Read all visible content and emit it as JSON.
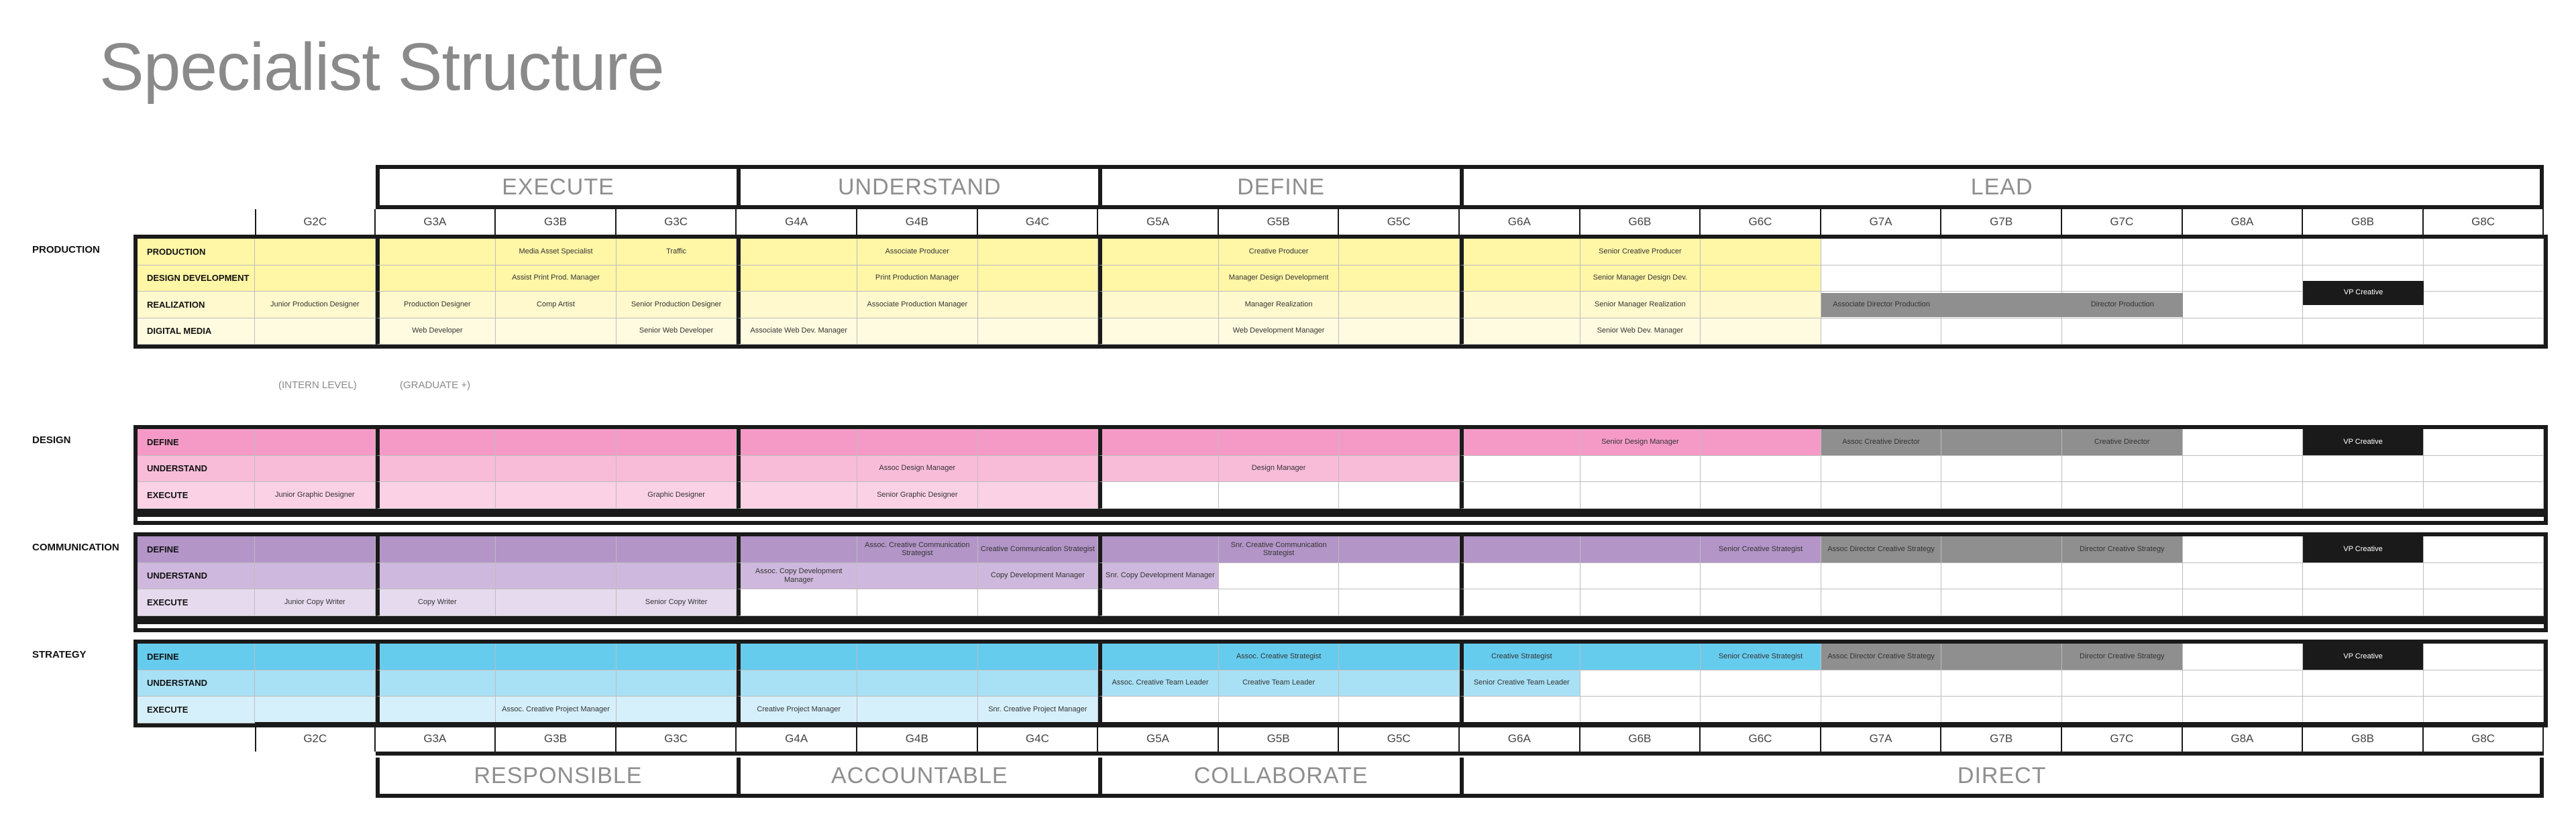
{
  "title": "Specialist Structure",
  "grades": [
    "G2C",
    "G3A",
    "G3B",
    "G3C",
    "G4A",
    "G4B",
    "G4C",
    "G5A",
    "G5B",
    "G5C",
    "G6A",
    "G6B",
    "G6C",
    "G7A",
    "G7B",
    "G7C",
    "G8A",
    "G8B",
    "G8C"
  ],
  "top_phases": [
    "EXECUTE",
    "UNDERSTAND",
    "DEFINE",
    "LEAD"
  ],
  "bottom_phases": [
    "RESPONSIBLE",
    "ACCOUNTABLE",
    "COLLABORATE",
    "DIRECT"
  ],
  "notes": {
    "intern": "(INTERN LEVEL)",
    "graduate": "(GRADUATE +)"
  },
  "colors": {
    "production": "#fff6a6",
    "production_light": "#fff9cd",
    "production_lighter": "#fffbe0",
    "design": "#f59ac7",
    "design_light": "#f8bcd9",
    "design_lighter": "#fad1e5",
    "communication": "#b395c8",
    "communication_light": "#cfb8dd",
    "communication_lighter": "#e6dbee",
    "strategy": "#66ccee",
    "strategy_light": "#a8e0f5",
    "strategy_lighter": "#d6f0fb",
    "gray": "#8f8f8f",
    "black": "#1a1a1a",
    "white": "#ffffff"
  },
  "sections": [
    {
      "name": "PRODUCTION",
      "rows": [
        {
          "label": "PRODUCTION",
          "tone": "production",
          "cells": {
            "G3B": "Media Asset Specialist",
            "G3C": "Traffic",
            "G4B": "Associate Producer",
            "G5B": "Creative Producer",
            "G6B": "Senior Creative Producer"
          }
        },
        {
          "label": "DESIGN DEVELOPMENT",
          "tone": "production",
          "cells": {
            "G3B": "Assist Print Prod. Manager",
            "G4B": "Print Production Manager",
            "G5B": "Manager Design Development",
            "G6B": "Senior Manager Design Dev."
          }
        },
        {
          "label": "REALIZATION",
          "tone": "production_light",
          "cells": {
            "G2C": "Junior Production Designer",
            "G3A": "Production Designer",
            "G3B": "Comp Artist",
            "G3C": "Senior Production Designer",
            "G4B": "Associate Production Manager",
            "G5B": "Manager Realization",
            "G6B": "Senior Manager Realization"
          }
        },
        {
          "label": "DIGITAL MEDIA",
          "tone": "production_lighter",
          "cells": {
            "G3A": "Web Developer",
            "G3C": "Senior Web Developer",
            "G4A": "Associate Web Dev. Manager",
            "G5B": "Web Development Manager",
            "G6B": "Senior Web Dev. Manager"
          }
        }
      ],
      "lead": [
        {
          "text": "Associate Director Production",
          "grade": "G7A"
        },
        {
          "text": "Director Production",
          "grade": "G7C"
        },
        {
          "text": "VP Creative",
          "grade": "G8B"
        }
      ]
    },
    {
      "name": "DESIGN",
      "rows": [
        {
          "label": "DEFINE",
          "tone": "design",
          "cells": {
            "G6B": "Senior Design Manager",
            "G7A": "Assoc Creative Director",
            "G7C": "Creative Director",
            "G8B": "VP Creative"
          }
        },
        {
          "label": "UNDERSTAND",
          "tone": "design_light",
          "cells": {
            "G4B": "Assoc Design Manager",
            "G5B": "Design Manager"
          }
        },
        {
          "label": "EXECUTE",
          "tone": "design_lighter",
          "cells": {
            "G2C": "Junior Graphic Designer",
            "G3C": "Graphic Designer",
            "G4B": "Senior Graphic Designer"
          }
        }
      ]
    },
    {
      "name": "COMMUNICATION",
      "rows": [
        {
          "label": "DEFINE",
          "tone": "communication",
          "cells": {
            "G4B": "Assoc. Creative Communication Strategist",
            "G4C": "Creative Communication Strategist",
            "G5B": "Snr. Creative Communication Strategist",
            "G6C": "Senior Creative Strategist",
            "G7A": "Assoc Director Creative Strategy",
            "G7C": "Director Creative Strategy",
            "G8B": "VP Creative"
          }
        },
        {
          "label": "UNDERSTAND",
          "tone": "communication_light",
          "cells": {
            "G4A": "Assoc. Copy Development Manager",
            "G4C": "Copy Development Manager",
            "G5A": "Snr. Copy Development Manager"
          }
        },
        {
          "label": "EXECUTE",
          "tone": "communication_lighter",
          "cells": {
            "G2C": "Junior Copy Writer",
            "G3A": "Copy Writer",
            "G3C": "Senior Copy Writer"
          }
        }
      ]
    },
    {
      "name": "STRATEGY",
      "rows": [
        {
          "label": "DEFINE",
          "tone": "strategy",
          "cells": {
            "G5B": "Assoc. Creative Strategist",
            "G6A": "Creative Strategist",
            "G6C": "Senior Creative Strategist",
            "G7A": "Assoc Director Creative Strategy",
            "G7C": "Director Creative Strategy",
            "G8B": "VP Creative"
          }
        },
        {
          "label": "UNDERSTAND",
          "tone": "strategy_light",
          "cells": {
            "G5A": "Assoc. Creative Team Leader",
            "G5B": "Creative Team Leader",
            "G6A": "Senior Creative Team Leader"
          }
        },
        {
          "label": "EXECUTE",
          "tone": "strategy_lighter",
          "cells": {
            "G3B": "Assoc. Creative Project Manager",
            "G4A": "Creative Project Manager",
            "G4C": "Snr. Creative Project Manager"
          }
        }
      ]
    }
  ]
}
